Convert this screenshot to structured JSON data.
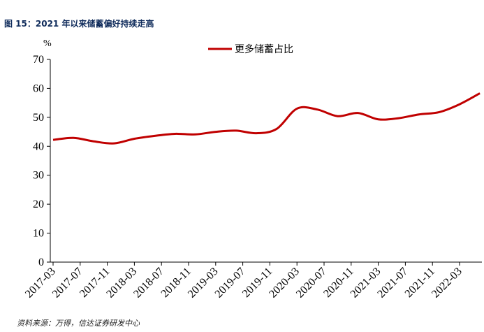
{
  "figure": {
    "title": "图 15：2021 年以来储蓄偏好持续走高",
    "source": "资料来源：万得，信达证券研发中心"
  },
  "colors": {
    "series": "#c00000",
    "title": "#0f2b5b",
    "axis": "#000000"
  },
  "chart_data": {
    "type": "line",
    "title": "",
    "xlabel": "",
    "ylabel": "%",
    "ylim": [
      0,
      70
    ],
    "yticks": [
      0,
      10,
      20,
      30,
      40,
      50,
      60,
      70
    ],
    "xtick_labels": [
      "2017-03",
      "2017-07",
      "2017-11",
      "2018-03",
      "2018-07",
      "2018-11",
      "2019-03",
      "2019-07",
      "2019-11",
      "2020-03",
      "2020-07",
      "2020-11",
      "2021-03",
      "2021-07",
      "2021-11",
      "2022-03"
    ],
    "grid": false,
    "legend_position": "top-center",
    "series": [
      {
        "name": "更多储蓄占比",
        "color": "#c00000",
        "x": [
          "2017-03",
          "2017-06",
          "2017-09",
          "2017-12",
          "2018-03",
          "2018-06",
          "2018-09",
          "2018-12",
          "2019-03",
          "2019-06",
          "2019-09",
          "2019-12",
          "2020-03",
          "2020-06",
          "2020-09",
          "2020-12",
          "2021-03",
          "2021-06",
          "2021-09",
          "2021-12",
          "2022-03",
          "2022-06"
        ],
        "values": [
          42.2,
          42.9,
          41.7,
          41.0,
          42.6,
          43.6,
          44.3,
          44.1,
          45.0,
          45.4,
          44.5,
          46.0,
          53.0,
          52.7,
          50.4,
          51.5,
          49.3,
          49.7,
          51.0,
          51.8,
          54.5,
          58.3
        ]
      }
    ]
  }
}
